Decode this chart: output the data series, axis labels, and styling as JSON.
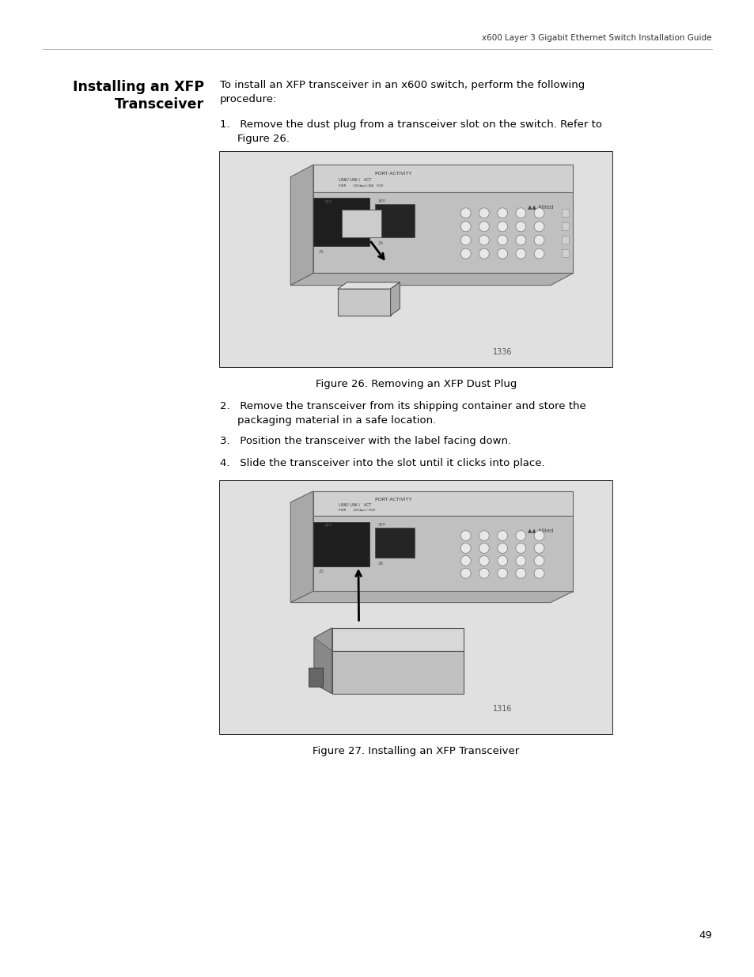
{
  "page_header": "x600 Layer 3 Gigabit Ethernet Switch Installation Guide",
  "section_title_line1": "Installing an XFP",
  "section_title_line2": "Transceiver",
  "intro_line1": "To install an XFP transceiver in an x600 switch, perform the following",
  "intro_line2": "procedure:",
  "step1_line1": "1.   Remove the dust plug from a transceiver slot on the switch. Refer to",
  "step1_line2": "Figure 26.",
  "fig26_caption": "Figure 26. Removing an XFP Dust Plug",
  "step2_line1": "2.   Remove the transceiver from its shipping container and store the",
  "step2_line2": "packaging material in a safe location.",
  "step3": "3.   Position the transceiver with the label facing down.",
  "step4": "4.   Slide the transceiver into the slot until it clicks into place.",
  "fig27_caption": "Figure 27. Installing an XFP Transceiver",
  "page_number": "49",
  "bg_color": "#ffffff",
  "text_color": "#000000",
  "header_color": "#333333",
  "border_color": "#000000",
  "caption_color": "#000000"
}
